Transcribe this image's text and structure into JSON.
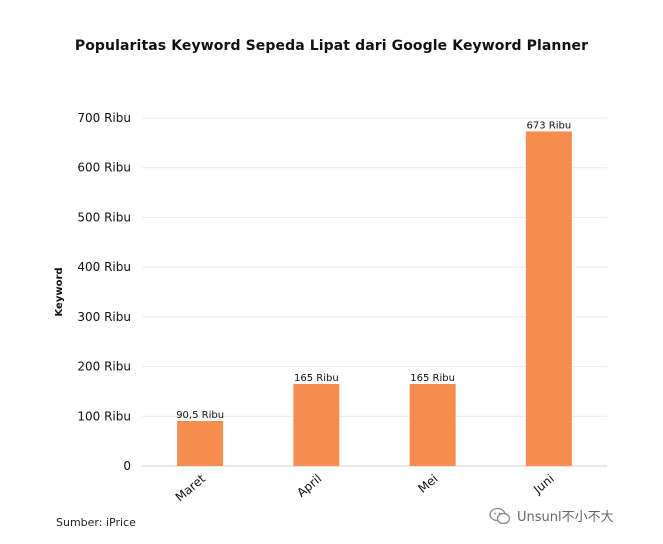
{
  "chart_data": {
    "type": "bar",
    "title": "Popularitas Keyword Sepeda Lipat dari Google Keyword Planner",
    "xlabel": "",
    "ylabel": "Keyword",
    "categories": [
      "Maret",
      "April",
      "Mei",
      "Juni"
    ],
    "values": [
      90500,
      165000,
      165000,
      673000
    ],
    "data_labels": [
      "90,5 Ribu",
      "165 Ribu",
      "165 Ribu",
      "673 Ribu"
    ],
    "ylim": [
      0,
      700000
    ],
    "yticks": [
      0,
      100000,
      200000,
      300000,
      400000,
      500000,
      600000,
      700000
    ],
    "ytick_labels": [
      "0",
      "100 Ribu",
      "200 Ribu",
      "300 Ribu",
      "400 Ribu",
      "500 Ribu",
      "600 Ribu",
      "700 Ribu"
    ],
    "grid": true,
    "bar_color": "#f58d4f"
  },
  "source_text": "Sumber: iPrice",
  "watermark_text": "Unsunl不小不大"
}
